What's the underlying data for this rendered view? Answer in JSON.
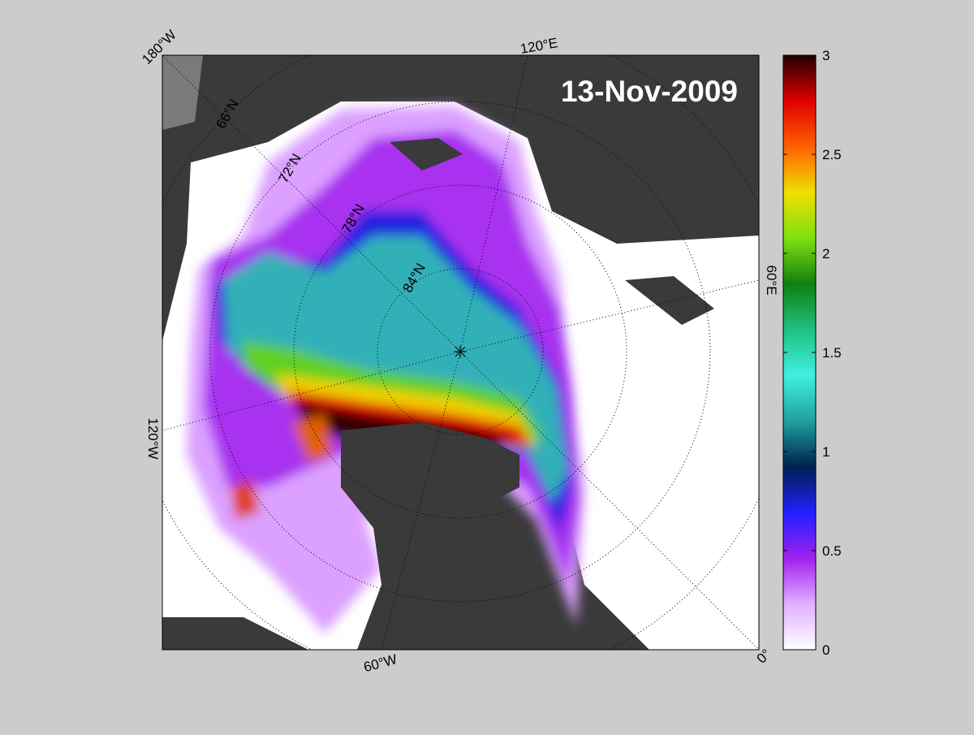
{
  "map": {
    "title": "13-Nov-2009",
    "lon_labels": [
      "180°W",
      "120°E",
      "60°E",
      "0°",
      "60°W",
      "120°W"
    ],
    "lat_labels": [
      "66°N",
      "72°N",
      "78°N",
      "84°N"
    ]
  },
  "colorbar": {
    "lim": [
      0,
      3
    ],
    "ticks": [
      0,
      0.5,
      1,
      1.5,
      2,
      2.5,
      3
    ],
    "colors": [
      "#ffffff",
      "#e0b0ff",
      "#a020f0",
      "#2020ff",
      "#002050",
      "#20a0a0",
      "#40f0e0",
      "#20c080",
      "#108010",
      "#80e010",
      "#f0e000",
      "#ff6000",
      "#e00000",
      "#200000"
    ]
  }
}
